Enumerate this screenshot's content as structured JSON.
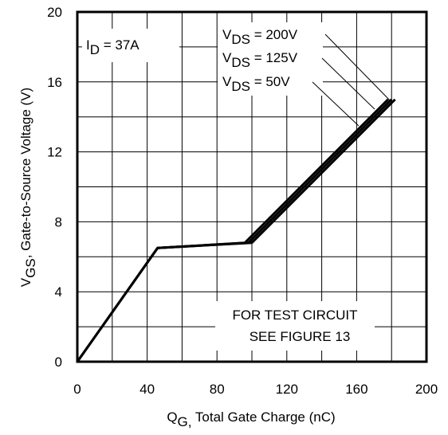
{
  "chart_data": {
    "type": "line",
    "xlabel": "Q",
    "xlabel_sub": "G,",
    "xlabel_rest": " Total Gate Charge (nC)",
    "ylabel": "V",
    "ylabel_sub": "GS",
    "ylabel_rest": ", Gate-to-Source Voltage (V)",
    "xlim": [
      0,
      200
    ],
    "ylim": [
      0,
      20
    ],
    "x_ticks": [
      "0",
      "40",
      "80",
      "120",
      "160",
      "200"
    ],
    "y_ticks": [
      "0",
      "4",
      "8",
      "12",
      "16",
      "20"
    ],
    "grid": true,
    "series": [
      {
        "name": "V_DS = 200V",
        "x": [
          0,
          46,
          100,
          182
        ],
        "y": [
          0,
          6.5,
          6.8,
          15.0
        ]
      },
      {
        "name": "V_DS = 125V",
        "x": [
          0,
          46,
          98,
          180
        ],
        "y": [
          0,
          6.5,
          6.8,
          15.0
        ]
      },
      {
        "name": "V_DS = 50V",
        "x": [
          0,
          46,
          96,
          178
        ],
        "y": [
          0,
          6.5,
          6.8,
          15.0
        ]
      }
    ],
    "annotations": {
      "id_label": {
        "main": "I",
        "sub": "D",
        "rest": " = 37A"
      },
      "vds_labels": [
        {
          "main": "V",
          "sub": "DS",
          "rest": " = 200V"
        },
        {
          "main": "V",
          "sub": "DS",
          "rest": " = 125V"
        },
        {
          "main": "V",
          "sub": "DS",
          "rest": " = 50V"
        }
      ],
      "test_circuit": [
        "FOR TEST CIRCUIT",
        "SEE FIGURE 13"
      ]
    }
  }
}
